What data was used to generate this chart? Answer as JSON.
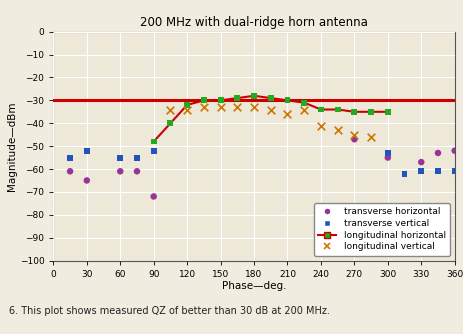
{
  "title": "200 MHz with dual-ridge horn antenna",
  "xlabel": "Phase—deg.",
  "ylabel": "Magnitude—dBm",
  "xlim": [
    0,
    360
  ],
  "ylim": [
    -100,
    0
  ],
  "xticks": [
    0,
    30,
    60,
    90,
    120,
    150,
    180,
    210,
    240,
    270,
    300,
    330,
    360
  ],
  "yticks": [
    0,
    -10,
    -20,
    -30,
    -40,
    -50,
    -60,
    -70,
    -80,
    -90,
    -100
  ],
  "reference_line_y": -30,
  "reference_line_color": "#cc0000",
  "plot_bg_color": "#ede8d8",
  "figure_bg_color": "#f0ece0",
  "caption_area_color": "#ffffff",
  "grid_color": "#ffffff",
  "transverse_horizontal_x": [
    15,
    30,
    60,
    75,
    90,
    270,
    300,
    330,
    345,
    360
  ],
  "transverse_horizontal_y": [
    -61,
    -65,
    -61,
    -61,
    -72,
    -47,
    -55,
    -57,
    -53,
    -52
  ],
  "transverse_horizontal_color": "#993399",
  "transverse_horizontal_marker": "o",
  "transverse_vertical_x": [
    15,
    30,
    60,
    75,
    90,
    300,
    315,
    330,
    345,
    360
  ],
  "transverse_vertical_y": [
    -55,
    -52,
    -55,
    -55,
    -52,
    -53,
    -62,
    -61,
    -61,
    -61
  ],
  "transverse_vertical_color": "#2255bb",
  "transverse_vertical_marker": "s",
  "longitudinal_horizontal_x": [
    90,
    105,
    120,
    135,
    150,
    165,
    180,
    195,
    210,
    225,
    240,
    255,
    270,
    285,
    300
  ],
  "longitudinal_horizontal_y": [
    -48,
    -40,
    -32,
    -30,
    -30,
    -29,
    -28,
    -29,
    -30,
    -31,
    -34,
    -34,
    -35,
    -35,
    -35
  ],
  "longitudinal_horizontal_line_color": "#cc0000",
  "longitudinal_horizontal_marker_color": "#22aa22",
  "longitudinal_horizontal_marker": "s",
  "longitudinal_vertical_x": [
    105,
    120,
    135,
    150,
    165,
    180,
    195,
    210,
    225,
    240,
    255,
    270,
    285
  ],
  "longitudinal_vertical_y": [
    -34,
    -34,
    -33,
    -33,
    -33,
    -33,
    -34,
    -36,
    -34,
    -41,
    -43,
    -45,
    -46
  ],
  "longitudinal_vertical_color": "#cc7700",
  "longitudinal_vertical_marker": "x",
  "caption": "6. This plot shows measured QZ of better than 30 dB at 200 MHz.",
  "caption_color": "#222222"
}
